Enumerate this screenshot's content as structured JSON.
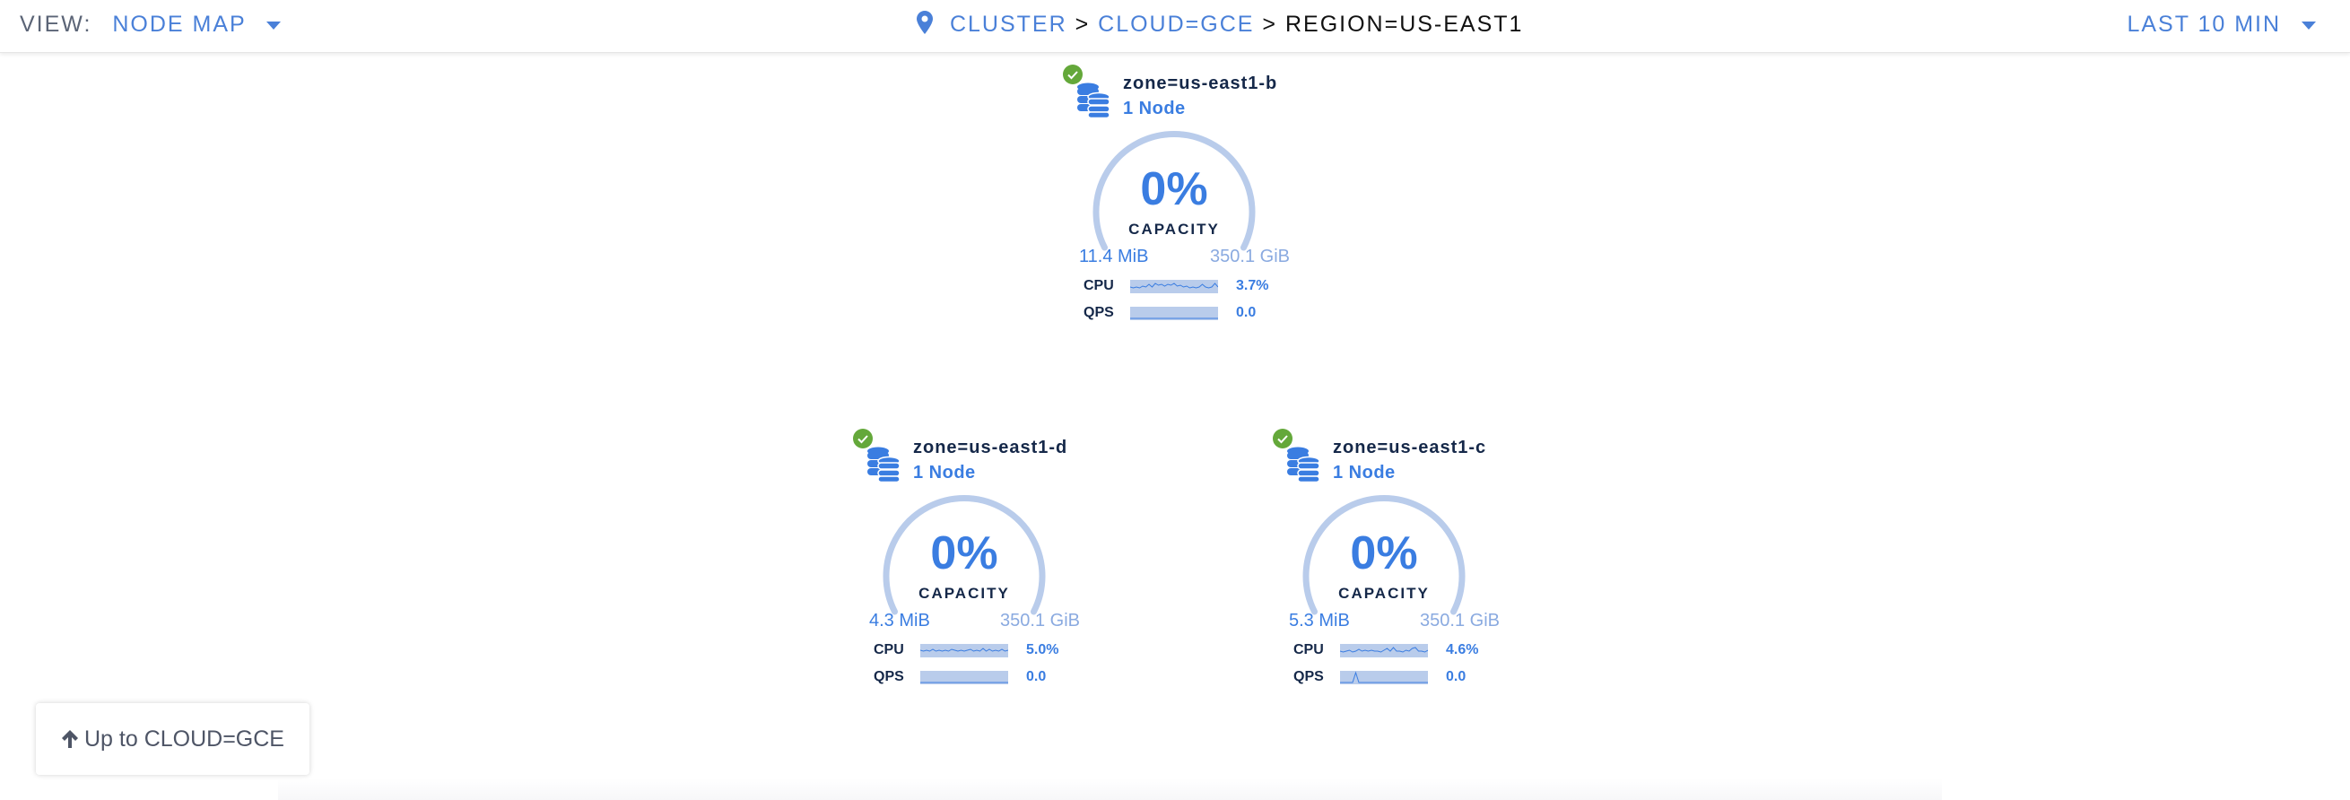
{
  "header": {
    "view_label": "VIEW:",
    "view_value": "NODE MAP",
    "breadcrumb": [
      {
        "label": "CLUSTER",
        "link": true
      },
      {
        "label": "CLOUD=GCE",
        "link": true
      },
      {
        "label": "REGION=US-EAST1",
        "link": false
      }
    ],
    "separator": ">",
    "time_range": "LAST 10 MIN"
  },
  "colors": {
    "accent": "#3a7de1",
    "healthy": "#64a83a",
    "gauge_track": "#b9cceb",
    "text_dark": "#152849"
  },
  "zones": [
    {
      "name": "zone=us-east1-b",
      "nodes": "1 Node",
      "status": "healthy",
      "capacity_pct": "0%",
      "capacity_label": "CAPACITY",
      "used": "11.4 MiB",
      "total": "350.1 GiB",
      "cpu_label": "CPU",
      "cpu_value": "3.7%",
      "qps_label": "QPS",
      "qps_value": "0.0"
    },
    {
      "name": "zone=us-east1-d",
      "nodes": "1 Node",
      "status": "healthy",
      "capacity_pct": "0%",
      "capacity_label": "CAPACITY",
      "used": "4.3 MiB",
      "total": "350.1 GiB",
      "cpu_label": "CPU",
      "cpu_value": "5.0%",
      "qps_label": "QPS",
      "qps_value": "0.0"
    },
    {
      "name": "zone=us-east1-c",
      "nodes": "1 Node",
      "status": "healthy",
      "capacity_pct": "0%",
      "capacity_label": "CAPACITY",
      "used": "5.3 MiB",
      "total": "350.1 GiB",
      "cpu_label": "CPU",
      "cpu_value": "4.6%",
      "qps_label": "QPS",
      "qps_value": "0.0"
    }
  ],
  "up_button": {
    "label": "Up to CLOUD=GCE"
  }
}
